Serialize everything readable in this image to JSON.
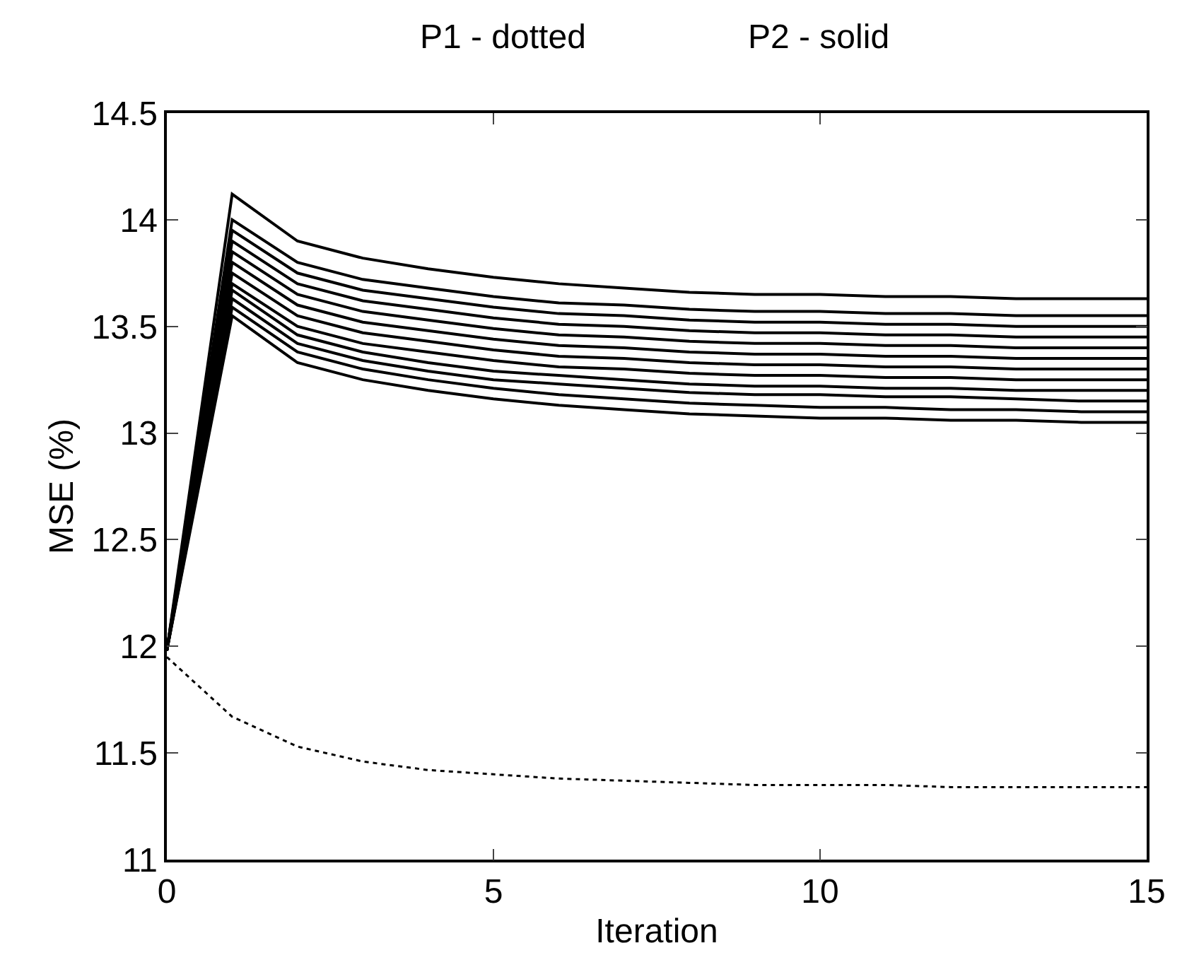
{
  "chart_data": {
    "type": "line",
    "xlabel": "Iteration",
    "ylabel": "MSE (%)",
    "annotations": [
      "P1 - dotted",
      "P2 - solid"
    ],
    "x": [
      0,
      1,
      2,
      3,
      4,
      5,
      6,
      7,
      8,
      9,
      10,
      11,
      12,
      13,
      14,
      15
    ],
    "xlim": [
      0,
      15
    ],
    "xticks": [
      0,
      5,
      10,
      15
    ],
    "ylim": [
      11,
      14.5
    ],
    "yticks": [
      11,
      11.5,
      12,
      12.5,
      13,
      13.5,
      14,
      14.5
    ],
    "grid": false,
    "marker": "none",
    "series": [
      {
        "color": "#000000",
        "line_style": "dotted",
        "values": [
          11.95,
          11.67,
          11.53,
          11.46,
          11.42,
          11.4,
          11.38,
          11.37,
          11.36,
          11.35,
          11.35,
          11.35,
          11.34,
          11.34,
          11.34,
          11.34
        ]
      },
      {
        "color": "#000000",
        "line_style": "solid",
        "values": [
          11.98,
          14.12,
          13.9,
          13.82,
          13.77,
          13.73,
          13.7,
          13.68,
          13.66,
          13.65,
          13.65,
          13.64,
          13.64,
          13.63,
          13.63,
          13.63
        ]
      },
      {
        "color": "#000000",
        "line_style": "solid",
        "values": [
          11.98,
          14.0,
          13.8,
          13.72,
          13.68,
          13.64,
          13.61,
          13.6,
          13.58,
          13.57,
          13.57,
          13.56,
          13.56,
          13.55,
          13.55,
          13.55
        ]
      },
      {
        "color": "#000000",
        "line_style": "solid",
        "values": [
          11.98,
          13.95,
          13.75,
          13.67,
          13.63,
          13.59,
          13.56,
          13.55,
          13.53,
          13.52,
          13.52,
          13.51,
          13.51,
          13.5,
          13.5,
          13.5
        ]
      },
      {
        "color": "#000000",
        "line_style": "solid",
        "values": [
          11.98,
          13.9,
          13.7,
          13.62,
          13.58,
          13.54,
          13.51,
          13.5,
          13.48,
          13.47,
          13.47,
          13.46,
          13.46,
          13.45,
          13.45,
          13.45
        ]
      },
      {
        "color": "#000000",
        "line_style": "solid",
        "values": [
          11.98,
          13.85,
          13.65,
          13.57,
          13.53,
          13.49,
          13.46,
          13.45,
          13.43,
          13.42,
          13.42,
          13.41,
          13.41,
          13.4,
          13.4,
          13.4
        ]
      },
      {
        "color": "#000000",
        "line_style": "solid",
        "values": [
          11.98,
          13.8,
          13.6,
          13.52,
          13.48,
          13.44,
          13.41,
          13.4,
          13.38,
          13.37,
          13.37,
          13.36,
          13.36,
          13.35,
          13.35,
          13.35
        ]
      },
      {
        "color": "#000000",
        "line_style": "solid",
        "values": [
          11.98,
          13.75,
          13.55,
          13.47,
          13.43,
          13.39,
          13.36,
          13.35,
          13.33,
          13.32,
          13.32,
          13.31,
          13.31,
          13.3,
          13.3,
          13.3
        ]
      },
      {
        "color": "#000000",
        "line_style": "solid",
        "values": [
          11.98,
          13.7,
          13.5,
          13.42,
          13.38,
          13.34,
          13.31,
          13.3,
          13.28,
          13.27,
          13.27,
          13.26,
          13.26,
          13.25,
          13.25,
          13.25
        ]
      },
      {
        "color": "#000000",
        "line_style": "solid",
        "values": [
          11.98,
          13.67,
          13.46,
          13.38,
          13.33,
          13.29,
          13.27,
          13.25,
          13.23,
          13.22,
          13.22,
          13.21,
          13.21,
          13.2,
          13.2,
          13.2
        ]
      },
      {
        "color": "#000000",
        "line_style": "solid",
        "values": [
          11.98,
          13.63,
          13.42,
          13.34,
          13.29,
          13.25,
          13.23,
          13.21,
          13.19,
          13.18,
          13.18,
          13.17,
          13.17,
          13.16,
          13.15,
          13.15
        ]
      },
      {
        "color": "#000000",
        "line_style": "solid",
        "values": [
          11.98,
          13.59,
          13.38,
          13.3,
          13.25,
          13.21,
          13.18,
          13.16,
          13.14,
          13.13,
          13.12,
          13.12,
          13.11,
          13.11,
          13.1,
          13.1
        ]
      },
      {
        "color": "#000000",
        "line_style": "solid",
        "values": [
          11.98,
          13.55,
          13.33,
          13.25,
          13.2,
          13.16,
          13.13,
          13.11,
          13.09,
          13.08,
          13.07,
          13.07,
          13.06,
          13.06,
          13.05,
          13.05
        ]
      }
    ]
  }
}
